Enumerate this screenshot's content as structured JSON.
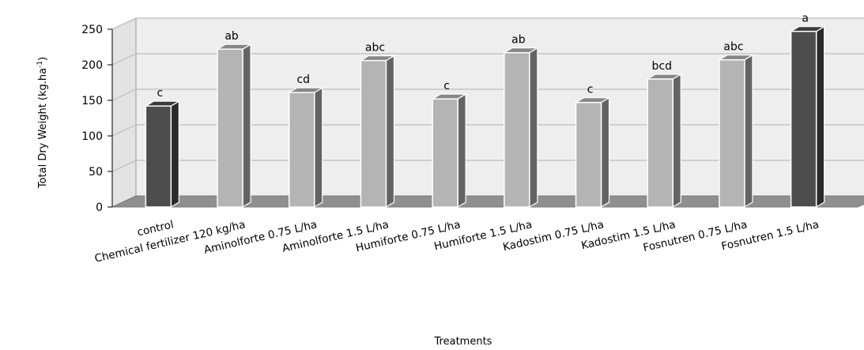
{
  "chart_data": {
    "type": "bar",
    "style": "3d-column",
    "categories": [
      "control",
      "Chemical fertilizer 120 kg/ha",
      "Aminolforte 0.75 L/ha",
      "Aminolforte 1.5 L/ha",
      "Humiforte 0.75 L/ha",
      "Humiforte 1.5 L/ha",
      "Kadostim 0.75 L/ha",
      "Kadostim 1.5 L/ha",
      "Fosnutren 0.75 L/ha",
      "Fosnutren 1.5 L/ha"
    ],
    "values": [
      142,
      222,
      161,
      206,
      152,
      217,
      147,
      180,
      207,
      247
    ],
    "data_labels": [
      "c",
      "ab",
      "cd",
      "abc",
      "c",
      "ab",
      "c",
      "bcd",
      "abc",
      "a"
    ],
    "highlight": [
      true,
      false,
      false,
      false,
      false,
      false,
      false,
      false,
      false,
      true
    ],
    "ylabel_main": "Total Dry Weight (kg.ha",
    "ylabel_sup": "-1",
    "ylabel_end": ")",
    "xlabel": "Treatments",
    "yticks": [
      "0",
      "50",
      "100",
      "150",
      "200",
      "250"
    ],
    "ylim": [
      0,
      250
    ],
    "grid": true,
    "colors": {
      "highlight_bar": "#4d4d4d",
      "normal_bar": "#b4b4b4",
      "wall": "#eeeeee",
      "floor": "#8f8f8f",
      "grid": "#bdbdbd"
    }
  }
}
